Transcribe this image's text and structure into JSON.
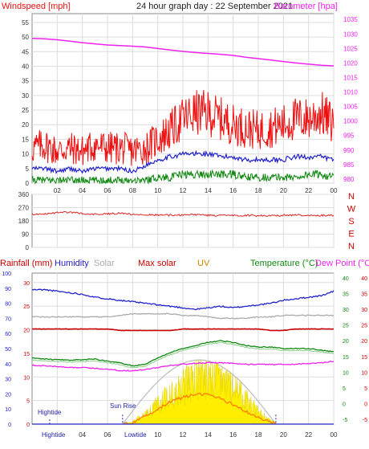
{
  "colors": {
    "wind": "#ee1111",
    "gust": "#ee1111",
    "avg": "#2222cc",
    "barometer": "#ee22ee",
    "direction": "#dd2222",
    "rain": "#2222cc",
    "humidity": "#2222cc",
    "solar": "#aaaaaa",
    "maxsolar": "#cc0000",
    "uv": "#cc8800",
    "temperature": "#118811",
    "dewpoint": "#ee22ee",
    "grid": "#dddddd",
    "axis": "#888888",
    "tick": "#333333",
    "sunfill": "#ffee00",
    "sunline": "#ff7700",
    "theory": "#bbbbbb",
    "tide": "#2222aa"
  },
  "header": {
    "windspeed_label": "Windspeed [mph]",
    "title": "24 hour graph day : 22 September 2021",
    "barometer_label": "Barometer [hpa]"
  },
  "wind_chart": {
    "type": "line",
    "x_labels": [
      "02",
      "04",
      "06",
      "08",
      "10",
      "12",
      "14",
      "16",
      "18",
      "20",
      "22",
      "00"
    ],
    "y_left_ticks": [
      "0",
      "5",
      "10",
      "15",
      "20",
      "25",
      "30",
      "35",
      "40",
      "45",
      "50",
      "55"
    ],
    "y_left_range": [
      0,
      58
    ],
    "y_right_ticks": [
      "980",
      "985",
      "990",
      "995",
      "1000",
      "1005",
      "1010",
      "1015",
      "1020",
      "1025",
      "1030",
      "1035"
    ],
    "y_right_range": [
      978.6,
      1037
    ],
    "hours": [
      0,
      1,
      2,
      3,
      4,
      5,
      6,
      7,
      8,
      9,
      10,
      11,
      12,
      13,
      14,
      15,
      16,
      17,
      18,
      19,
      20,
      21,
      22,
      23,
      24
    ],
    "gust_max": [
      12,
      13,
      11,
      12,
      11,
      13,
      12,
      12,
      11,
      12,
      15,
      18,
      22,
      24,
      24,
      22,
      20,
      19,
      18,
      19,
      20,
      22,
      22,
      24,
      20
    ],
    "speed_avg": [
      5,
      5,
      4,
      5,
      4,
      5,
      5,
      5,
      4,
      6,
      8,
      9,
      10,
      10,
      10,
      9,
      9,
      8,
      8,
      8,
      8,
      9,
      9,
      9,
      8
    ],
    "speed_min": [
      1,
      1,
      1,
      1,
      1,
      1,
      1,
      1,
      1,
      1,
      2,
      2,
      3,
      3,
      3,
      3,
      3,
      2,
      2,
      2,
      2,
      2,
      3,
      3,
      2
    ],
    "barometer": [
      1028.5,
      1028.3,
      1028,
      1027.5,
      1027,
      1026.6,
      1026.2,
      1026,
      1025.8,
      1025.5,
      1025,
      1024.5,
      1024,
      1023.6,
      1023.3,
      1023,
      1022.6,
      1022,
      1021.5,
      1021,
      1020.5,
      1020,
      1019.6,
      1019.2,
      1019
    ]
  },
  "direction_chart": {
    "type": "line",
    "y_ticks": [
      "0",
      "90",
      "180",
      "270",
      "360"
    ],
    "y_range": [
      0,
      360
    ],
    "compass": [
      "N",
      "W",
      "S",
      "E",
      "N"
    ],
    "direction": [
      225,
      228,
      235,
      240,
      230,
      225,
      228,
      232,
      225,
      222,
      220,
      218,
      220,
      222,
      218,
      216,
      215,
      218,
      215,
      216,
      218,
      220,
      219,
      217,
      218
    ]
  },
  "weather_legend": {
    "rainfall": "Rainfall (mm)",
    "humidity": "Humidity",
    "solar": "Solar",
    "max_solar": "Max solar",
    "uv": "UV",
    "temperature": "Temperature (°C)",
    "dew_point": "Dew Point (°C)"
  },
  "weather_chart": {
    "type": "line",
    "humidity_ticks": [
      "0",
      "10",
      "20",
      "30",
      "40",
      "50",
      "60",
      "70",
      "80",
      "90",
      "100"
    ],
    "humidity_range": [
      0,
      100
    ],
    "rain_ticks": [
      "0",
      "5",
      "10",
      "15",
      "20",
      "25",
      "30"
    ],
    "rain_range": [
      0,
      32
    ],
    "temp_ticks_green": [
      "-5",
      "0",
      "5",
      "10",
      "15",
      "20",
      "25",
      "30",
      "35",
      "40"
    ],
    "temp_ticks_red": [
      "-5",
      "0",
      "5",
      "10",
      "15",
      "20",
      "25",
      "30",
      "35",
      "40"
    ],
    "temp_range": [
      -6.5,
      41.5
    ],
    "humidity": [
      89,
      89,
      88,
      87,
      86,
      84,
      83,
      82,
      81,
      80,
      79,
      78,
      77,
      76,
      77,
      78,
      77,
      78,
      79,
      80,
      82,
      83,
      84,
      85,
      88
    ],
    "solar_top": [
      71,
      71,
      71,
      71,
      71,
      71,
      71,
      72,
      73,
      73,
      73,
      73,
      72,
      72,
      71,
      70,
      70,
      70,
      71,
      71,
      72,
      72,
      72,
      72,
      72
    ],
    "max_solar_line": [
      63,
      63,
      63,
      63,
      63,
      63,
      63,
      62,
      62,
      62,
      62,
      62,
      63,
      63,
      63,
      63,
      63,
      63,
      63,
      62,
      62,
      63,
      63,
      63,
      63
    ],
    "temperature": [
      14.5,
      14.2,
      14,
      13.8,
      14,
      14.2,
      13.5,
      13,
      12,
      12.5,
      14.5,
      16.2,
      17.5,
      18.5,
      19.5,
      20,
      19.5,
      18.5,
      18,
      18,
      17.5,
      17.5,
      17.5,
      17,
      16.5
    ],
    "dew_point": [
      12.2,
      12,
      11.8,
      11.5,
      11.5,
      11.2,
      11,
      10.5,
      10.5,
      10.8,
      11.5,
      12.2,
      12.5,
      12.8,
      13,
      13,
      12.8,
      12.5,
      12.5,
      12.5,
      12.5,
      12.5,
      12.8,
      13,
      13.5
    ],
    "rain": [
      0,
      0,
      0,
      0,
      0,
      0,
      0,
      0,
      0,
      0,
      0,
      0,
      0,
      0,
      0,
      0,
      0,
      0,
      0,
      0,
      0,
      0,
      0,
      0,
      0
    ],
    "sun_max_hour": 13.6,
    "sunrise_hour": 7.2,
    "sunset_hour": 19.4,
    "solar_actual": [
      0,
      0,
      0,
      0,
      0,
      0,
      0,
      0,
      0.5,
      2.5,
      5,
      7,
      9,
      11,
      13,
      12,
      9,
      6,
      3,
      1,
      0,
      0,
      0,
      0,
      0
    ],
    "uv_index": [
      0,
      0,
      0,
      0,
      0,
      0,
      0,
      0,
      0.2,
      1.2,
      2.4,
      3.5,
      4.2,
      4.6,
      4.7,
      4,
      3,
      2,
      1,
      0.3,
      0,
      0,
      0,
      0,
      0
    ],
    "tide_labels": {
      "hightide1": "Hightide",
      "sunrise": "Sun Rise",
      "hightide_bottom": "Hightide",
      "lowtide": "Lowtide"
    },
    "x_labels": [
      "02",
      "04",
      "06",
      "08",
      "10",
      "12",
      "14",
      "16",
      "18",
      "20",
      "22",
      "00"
    ]
  }
}
